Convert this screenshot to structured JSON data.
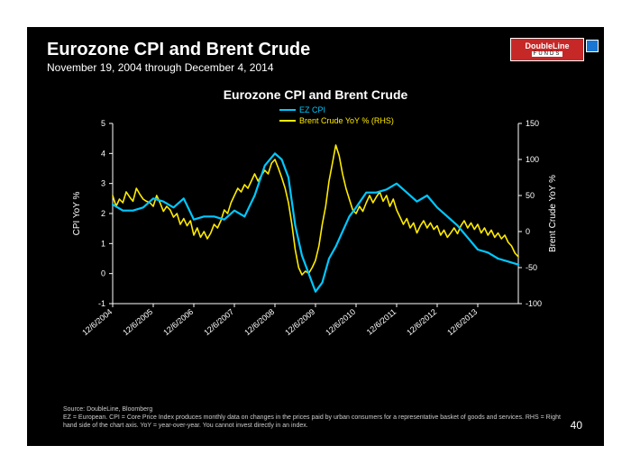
{
  "slide": {
    "title": "Eurozone CPI and Brent Crude",
    "subtitle": "November 19, 2004 through December 4, 2014",
    "page_number": "40",
    "logo": {
      "line1": "DoubleLine",
      "line2": "FUNDS"
    }
  },
  "footnote": {
    "line1": "Source: DoubleLine, Bloomberg",
    "line2": "EZ = European. CPI = Core Price Index produces monthly data on changes in the prices paid by urban consumers for a representative basket of goods and services. RHS = Right hand side of the chart axis. YoY = year-over-year. You cannot invest directly in an index."
  },
  "chart": {
    "type": "line-dual-axis",
    "inner_title": "Eurozone CPI and Brent Crude",
    "title_fontsize": 14,
    "background_color": "#000000",
    "axis_color": "#ffffff",
    "grid_color": "#ffffff",
    "tick_fontsize": 9,
    "x": {
      "domain_index": [
        0,
        120
      ],
      "tick_positions": [
        0,
        12,
        24,
        36,
        48,
        60,
        72,
        84,
        96,
        108
      ],
      "tick_labels": [
        "12/6/2004",
        "12/6/2005",
        "12/6/2006",
        "12/6/2007",
        "12/6/2008",
        "12/6/2009",
        "12/6/2010",
        "12/6/2011",
        "12/6/2012",
        "12/6/2013"
      ],
      "label_rotation_deg": -40
    },
    "y_left": {
      "label": "CPI YoY %",
      "lim": [
        -1,
        5
      ],
      "ticks": [
        -1,
        0,
        1,
        2,
        3,
        4,
        5
      ]
    },
    "y_right": {
      "label": "Brent Crude YoY %",
      "lim": [
        -100,
        150
      ],
      "ticks": [
        -100,
        -50,
        0,
        50,
        100,
        150
      ]
    },
    "legend": {
      "items": [
        {
          "label": "EZ CPI",
          "color": "#00c8ff"
        },
        {
          "label": "Brent Crude YoY % (RHS)",
          "color": "#ffeb00"
        }
      ]
    },
    "series": {
      "ez_cpi": {
        "axis": "left",
        "color": "#00c8ff",
        "line_width": 2.2,
        "data": [
          [
            0,
            2.3
          ],
          [
            3,
            2.1
          ],
          [
            6,
            2.1
          ],
          [
            9,
            2.2
          ],
          [
            12,
            2.5
          ],
          [
            15,
            2.4
          ],
          [
            18,
            2.2
          ],
          [
            21,
            2.5
          ],
          [
            24,
            1.8
          ],
          [
            27,
            1.9
          ],
          [
            30,
            1.9
          ],
          [
            33,
            1.8
          ],
          [
            36,
            2.1
          ],
          [
            39,
            1.9
          ],
          [
            42,
            2.6
          ],
          [
            45,
            3.6
          ],
          [
            48,
            4.0
          ],
          [
            50,
            3.8
          ],
          [
            52,
            3.2
          ],
          [
            54,
            1.6
          ],
          [
            56,
            0.6
          ],
          [
            58,
            0.0
          ],
          [
            60,
            -0.6
          ],
          [
            62,
            -0.3
          ],
          [
            64,
            0.5
          ],
          [
            66,
            0.9
          ],
          [
            68,
            1.4
          ],
          [
            70,
            1.9
          ],
          [
            72,
            2.2
          ],
          [
            75,
            2.7
          ],
          [
            78,
            2.7
          ],
          [
            81,
            2.8
          ],
          [
            84,
            3.0
          ],
          [
            87,
            2.7
          ],
          [
            90,
            2.4
          ],
          [
            93,
            2.6
          ],
          [
            96,
            2.2
          ],
          [
            99,
            1.9
          ],
          [
            102,
            1.6
          ],
          [
            105,
            1.2
          ],
          [
            108,
            0.8
          ],
          [
            111,
            0.7
          ],
          [
            114,
            0.5
          ],
          [
            117,
            0.4
          ],
          [
            120,
            0.3
          ]
        ]
      },
      "brent": {
        "axis": "right",
        "color": "#ffeb00",
        "line_width": 1.6,
        "data": [
          [
            0,
            50
          ],
          [
            1,
            35
          ],
          [
            2,
            45
          ],
          [
            3,
            40
          ],
          [
            4,
            55
          ],
          [
            5,
            48
          ],
          [
            6,
            42
          ],
          [
            7,
            60
          ],
          [
            8,
            52
          ],
          [
            9,
            45
          ],
          [
            10,
            42
          ],
          [
            11,
            40
          ],
          [
            12,
            35
          ],
          [
            13,
            50
          ],
          [
            14,
            40
          ],
          [
            15,
            28
          ],
          [
            16,
            35
          ],
          [
            17,
            30
          ],
          [
            18,
            20
          ],
          [
            19,
            25
          ],
          [
            20,
            10
          ],
          [
            21,
            18
          ],
          [
            22,
            8
          ],
          [
            23,
            15
          ],
          [
            24,
            -5
          ],
          [
            25,
            5
          ],
          [
            26,
            -8
          ],
          [
            27,
            0
          ],
          [
            28,
            -10
          ],
          [
            29,
            -2
          ],
          [
            30,
            10
          ],
          [
            31,
            5
          ],
          [
            32,
            15
          ],
          [
            33,
            30
          ],
          [
            34,
            25
          ],
          [
            35,
            40
          ],
          [
            36,
            50
          ],
          [
            37,
            60
          ],
          [
            38,
            55
          ],
          [
            39,
            65
          ],
          [
            40,
            60
          ],
          [
            41,
            70
          ],
          [
            42,
            80
          ],
          [
            43,
            70
          ],
          [
            44,
            78
          ],
          [
            45,
            85
          ],
          [
            46,
            80
          ],
          [
            47,
            95
          ],
          [
            48,
            100
          ],
          [
            49,
            88
          ],
          [
            50,
            75
          ],
          [
            51,
            60
          ],
          [
            52,
            40
          ],
          [
            53,
            10
          ],
          [
            54,
            -25
          ],
          [
            55,
            -50
          ],
          [
            56,
            -60
          ],
          [
            57,
            -55
          ],
          [
            58,
            -58
          ],
          [
            59,
            -50
          ],
          [
            60,
            -40
          ],
          [
            61,
            -20
          ],
          [
            62,
            10
          ],
          [
            63,
            35
          ],
          [
            64,
            70
          ],
          [
            65,
            95
          ],
          [
            66,
            120
          ],
          [
            67,
            105
          ],
          [
            68,
            80
          ],
          [
            69,
            60
          ],
          [
            70,
            45
          ],
          [
            71,
            30
          ],
          [
            72,
            25
          ],
          [
            73,
            35
          ],
          [
            74,
            28
          ],
          [
            75,
            40
          ],
          [
            76,
            50
          ],
          [
            77,
            40
          ],
          [
            78,
            48
          ],
          [
            79,
            55
          ],
          [
            80,
            42
          ],
          [
            81,
            50
          ],
          [
            82,
            35
          ],
          [
            83,
            45
          ],
          [
            84,
            30
          ],
          [
            85,
            20
          ],
          [
            86,
            10
          ],
          [
            87,
            18
          ],
          [
            88,
            5
          ],
          [
            89,
            12
          ],
          [
            90,
            -2
          ],
          [
            91,
            8
          ],
          [
            92,
            15
          ],
          [
            93,
            5
          ],
          [
            94,
            12
          ],
          [
            95,
            3
          ],
          [
            96,
            8
          ],
          [
            97,
            -5
          ],
          [
            98,
            2
          ],
          [
            99,
            -8
          ],
          [
            100,
            -2
          ],
          [
            101,
            5
          ],
          [
            102,
            -3
          ],
          [
            103,
            8
          ],
          [
            104,
            15
          ],
          [
            105,
            5
          ],
          [
            106,
            12
          ],
          [
            107,
            3
          ],
          [
            108,
            10
          ],
          [
            109,
            -2
          ],
          [
            110,
            5
          ],
          [
            111,
            -5
          ],
          [
            112,
            2
          ],
          [
            113,
            -8
          ],
          [
            114,
            -2
          ],
          [
            115,
            -10
          ],
          [
            116,
            -5
          ],
          [
            117,
            -15
          ],
          [
            118,
            -20
          ],
          [
            119,
            -30
          ],
          [
            120,
            -35
          ]
        ]
      }
    }
  }
}
